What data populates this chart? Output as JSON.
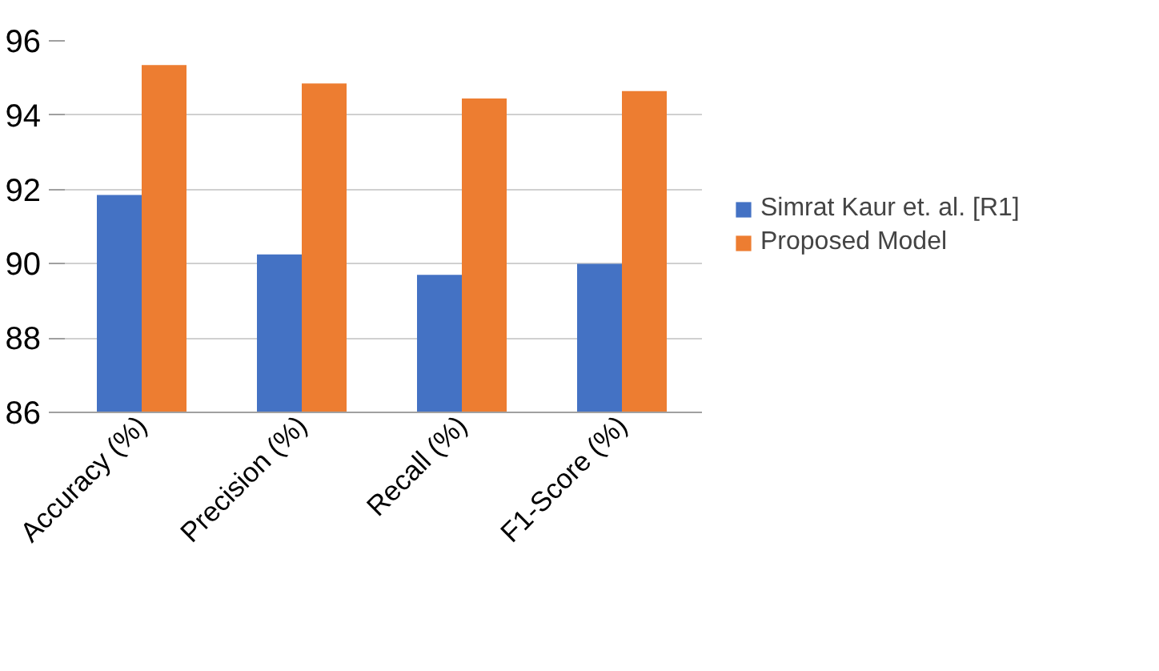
{
  "chart_data": {
    "type": "bar",
    "categories": [
      "Accuracy (%)",
      "Precision (%)",
      "Recall (%)",
      "F1-Score (%)"
    ],
    "series": [
      {
        "name": "Simrat Kaur et. al. [R1]",
        "color": "#4472c4",
        "values": [
          91.85,
          90.25,
          89.7,
          90.0
        ]
      },
      {
        "name": "Proposed Model",
        "color": "#ed7d31",
        "values": [
          95.35,
          94.85,
          94.45,
          94.65
        ]
      }
    ],
    "ylim": [
      86,
      96
    ],
    "yticks": [
      86,
      88,
      90,
      92,
      94,
      96
    ],
    "grid": "y",
    "legend": "right"
  }
}
